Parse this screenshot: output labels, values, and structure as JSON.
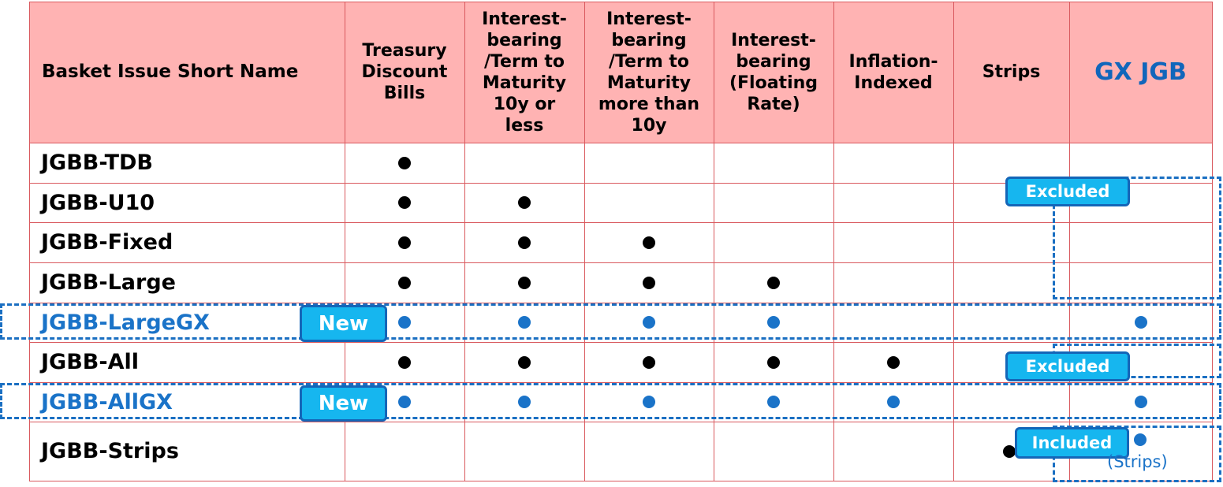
{
  "columns": [
    {
      "key": "name",
      "label": "Basket Issue Short Name"
    },
    {
      "key": "tdb",
      "label": "Treasury\nDiscount\nBills"
    },
    {
      "key": "u10",
      "label": "Interest-\nbearing\n/Term to\nMaturity\n10y or\nless"
    },
    {
      "key": "o10",
      "label": "Interest-\nbearing\n/Term to\nMaturity\nmore than\n10y"
    },
    {
      "key": "frn",
      "label": "Interest-\nbearing\n(Floating\nRate)"
    },
    {
      "key": "inf",
      "label": "Inflation-\nIndexed"
    },
    {
      "key": "strips",
      "label": "Strips"
    },
    {
      "key": "gx",
      "label": "GX JGB"
    }
  ],
  "rows": [
    {
      "name": "JGBB-TDB",
      "style": "black",
      "marks": [
        1,
        0,
        0,
        0,
        0,
        0,
        0
      ]
    },
    {
      "name": "JGBB-U10",
      "style": "black",
      "marks": [
        1,
        1,
        0,
        0,
        0,
        0,
        0
      ]
    },
    {
      "name": "JGBB-Fixed",
      "style": "black",
      "marks": [
        1,
        1,
        1,
        0,
        0,
        0,
        0
      ]
    },
    {
      "name": "JGBB-Large",
      "style": "black",
      "marks": [
        1,
        1,
        1,
        1,
        0,
        0,
        0
      ]
    },
    {
      "name": "JGBB-LargeGX",
      "style": "blue",
      "badge": "New",
      "marks": [
        1,
        1,
        1,
        1,
        0,
        0,
        1
      ]
    },
    {
      "name": "JGBB-All",
      "style": "black",
      "marks": [
        1,
        1,
        1,
        1,
        1,
        0,
        0
      ]
    },
    {
      "name": "JGBB-AllGX",
      "style": "blue",
      "badge": "New",
      "marks": [
        1,
        1,
        1,
        1,
        1,
        0,
        1
      ]
    },
    {
      "name": "JGBB-Strips",
      "style": "black",
      "marks": [
        0,
        0,
        0,
        0,
        0,
        1,
        1
      ]
    }
  ],
  "annotations": {
    "excluded_1": "Excluded",
    "excluded_2": "Excluded",
    "included": "Included",
    "strips_note": "(Strips)"
  },
  "colors": {
    "header_bg": "#ffb3b3",
    "grid": "#d9595e",
    "accent_blue": "#1a73c8",
    "badge_fill": "#16b6ef"
  }
}
